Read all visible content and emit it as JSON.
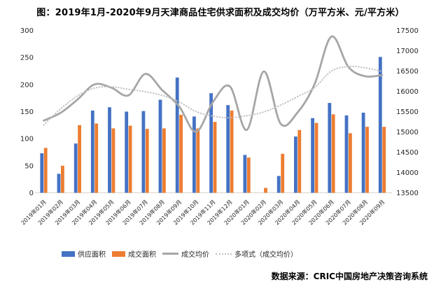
{
  "chart_data": {
    "type": "bar",
    "subtype": "combo-bar-line",
    "title": "图：2019年1月-2020年9月天津商品住宅供求面积及成交均价（万平方米、元/平方米）",
    "source": "数据来源：CRIC中国房地产决策咨询系统",
    "legend_position": "bottom",
    "grid": "off",
    "categories": [
      "2019年01月",
      "2019年02月",
      "2019年03月",
      "2019年04月",
      "2019年05月",
      "2019年06月",
      "2019年07月",
      "2019年08月",
      "2019年09月",
      "2019年10月",
      "2019年11月",
      "2019年12月",
      "2020年01月",
      "2020年02月",
      "2020年03月",
      "2020年04月",
      "2020年05月",
      "2020年06月",
      "2020年07月",
      "2020年08月",
      "2020年09月"
    ],
    "left_axis": {
      "min": 0,
      "max": 300,
      "step": 50,
      "unit": "万平方米"
    },
    "right_axis": {
      "min": 13500,
      "max": 17500,
      "step": 500,
      "unit": "元/平方米"
    },
    "series": [
      {
        "name": "供应面积",
        "type": "bar",
        "axis": "left",
        "color": "#4472C4",
        "values": [
          73,
          35,
          91,
          152,
          158,
          150,
          151,
          172,
          213,
          141,
          184,
          162,
          70,
          0,
          31,
          104,
          138,
          166,
          143,
          148,
          251
        ]
      },
      {
        "name": "成交面积",
        "type": "bar",
        "axis": "left",
        "color": "#ED7D31",
        "values": [
          83,
          50,
          125,
          128,
          119,
          124,
          118,
          119,
          144,
          119,
          131,
          152,
          65,
          9,
          72,
          116,
          129,
          145,
          110,
          122,
          122
        ]
      },
      {
        "name": "成交均价",
        "type": "line",
        "axis": "right",
        "color": "#A6A6A6",
        "values": [
          15280,
          15470,
          15800,
          16170,
          16090,
          15900,
          16430,
          16030,
          15630,
          15000,
          15740,
          16120,
          15050,
          16490,
          15200,
          15480,
          16170,
          17350,
          16600,
          16370,
          16400
        ]
      },
      {
        "name": "多项式（成交均价）",
        "type": "line-dotted",
        "axis": "right",
        "color": "#BFBFBF",
        "values": [
          15170,
          15570,
          15890,
          16080,
          16110,
          16050,
          15990,
          15900,
          15740,
          15500,
          15390,
          15350,
          15400,
          15490,
          15660,
          15870,
          16090,
          16500,
          16610,
          16580,
          16490
        ]
      }
    ],
    "axis_line_color": "#DAD4CC",
    "text_color": "#262626"
  }
}
